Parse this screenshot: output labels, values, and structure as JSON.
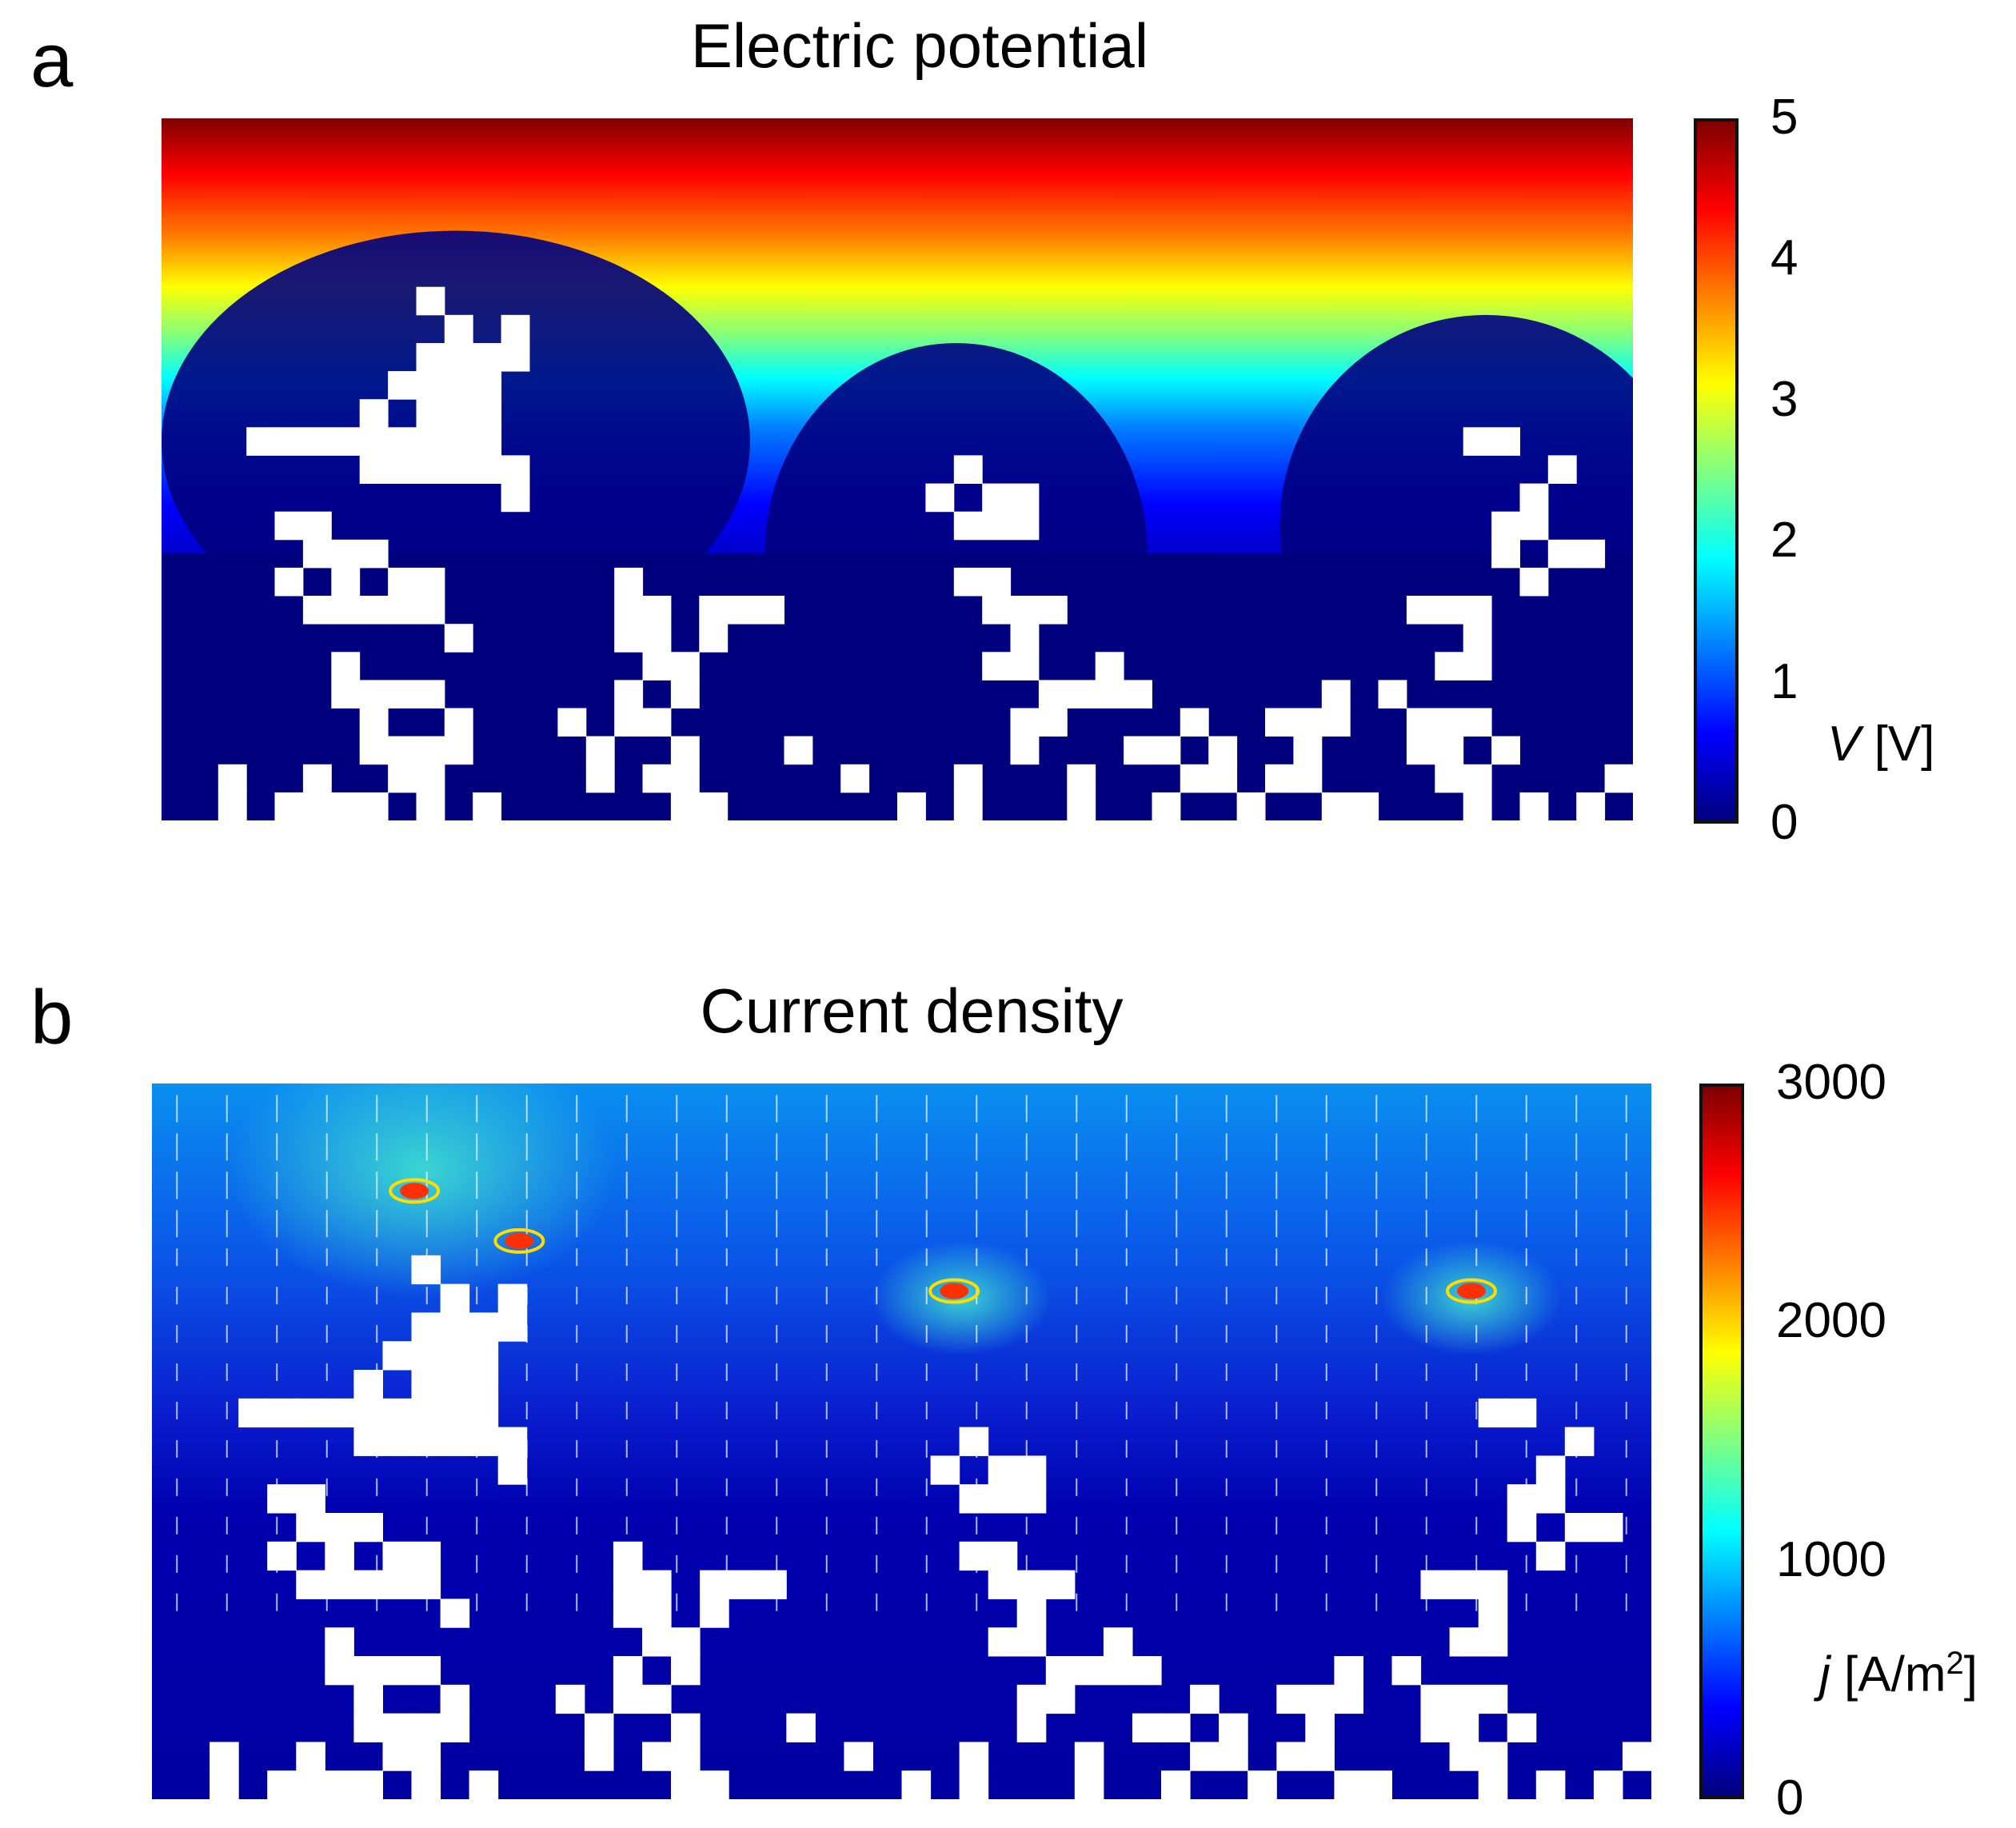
{
  "chart_data": [
    {
      "type": "heatmap",
      "panel": "a",
      "title": "Electric potential",
      "colorbar": {
        "label_symbol": "V",
        "label_unit": "[V]",
        "ticks": [
          "0",
          "1",
          "2",
          "3",
          "4",
          "5"
        ],
        "range": [
          0,
          5
        ],
        "colormap": [
          "#00007f",
          "#0000ff",
          "#0080ff",
          "#00ffff",
          "#80ff80",
          "#ffff00",
          "#ff8000",
          "#ff0000",
          "#7f0000"
        ]
      },
      "field_description": "Potential ~5 V at top boundary, decaying to ~0 V around dendritic deposits growing from the bottom electrode"
    },
    {
      "type": "heatmap",
      "panel": "b",
      "title": "Current density",
      "colorbar": {
        "label_symbol": "j",
        "label_unit_prefix": "[A/m",
        "label_unit_sup": "2",
        "label_unit_suffix": "]",
        "ticks": [
          "0",
          "1000",
          "2000",
          "3000"
        ],
        "range": [
          0,
          3000
        ],
        "colormap": [
          "#00007f",
          "#0000ff",
          "#0080ff",
          "#00ffff",
          "#80ff80",
          "#ffff00",
          "#ff8000",
          "#ff0000",
          "#7f0000"
        ]
      },
      "field_description": "Current density highest at dendrite tips (hotspots up to ~3000 A/m^2), white arrows show current direction toward deposits"
    }
  ]
}
